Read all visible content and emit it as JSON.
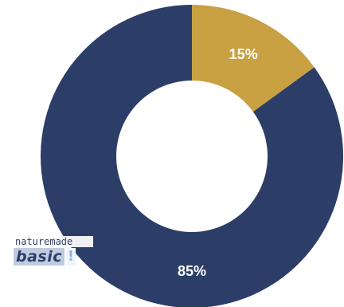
{
  "chart_data": {
    "type": "pie",
    "donut": true,
    "slices": [
      {
        "label": "15%",
        "value": 15,
        "color": "#c9a042"
      },
      {
        "label": "85%",
        "value": 85,
        "color": "#2c3e68"
      }
    ],
    "start_angle_deg": 0,
    "direction": "clockwise",
    "legend": "none"
  },
  "logo": {
    "top_text": "naturemade",
    "word": "basic",
    "mark": "!"
  }
}
